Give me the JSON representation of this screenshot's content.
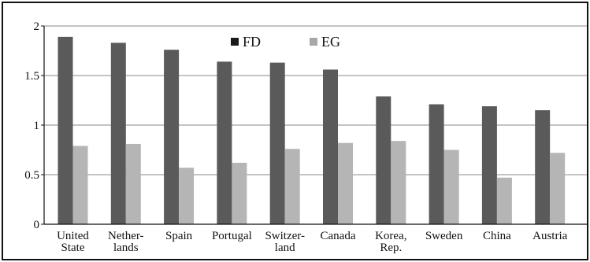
{
  "chart_data": {
    "type": "bar",
    "categories": [
      [
        "United",
        "State"
      ],
      [
        "Nether-",
        "lands"
      ],
      [
        "Spain"
      ],
      [
        "Portugal"
      ],
      [
        "Switzer-",
        "land"
      ],
      [
        "Canada"
      ],
      [
        "Korea,",
        "Rep."
      ],
      [
        "Sweden"
      ],
      [
        "China"
      ],
      [
        "Austria"
      ]
    ],
    "series": [
      {
        "name": "FD",
        "color": "#5a5a5a",
        "values": [
          1.89,
          1.83,
          1.76,
          1.64,
          1.63,
          1.56,
          1.29,
          1.21,
          1.19,
          1.15
        ]
      },
      {
        "name": "EG",
        "color": "#b5b5b5",
        "values": [
          0.79,
          0.81,
          0.57,
          0.62,
          0.76,
          0.82,
          0.84,
          0.75,
          0.47,
          0.72
        ]
      }
    ],
    "ylim": [
      0,
      2
    ],
    "yticks": [
      "0",
      "0.5",
      "1",
      "1.5",
      "2"
    ],
    "grid": true,
    "legend_position": "top-center",
    "title": "",
    "xlabel": "",
    "ylabel": ""
  }
}
